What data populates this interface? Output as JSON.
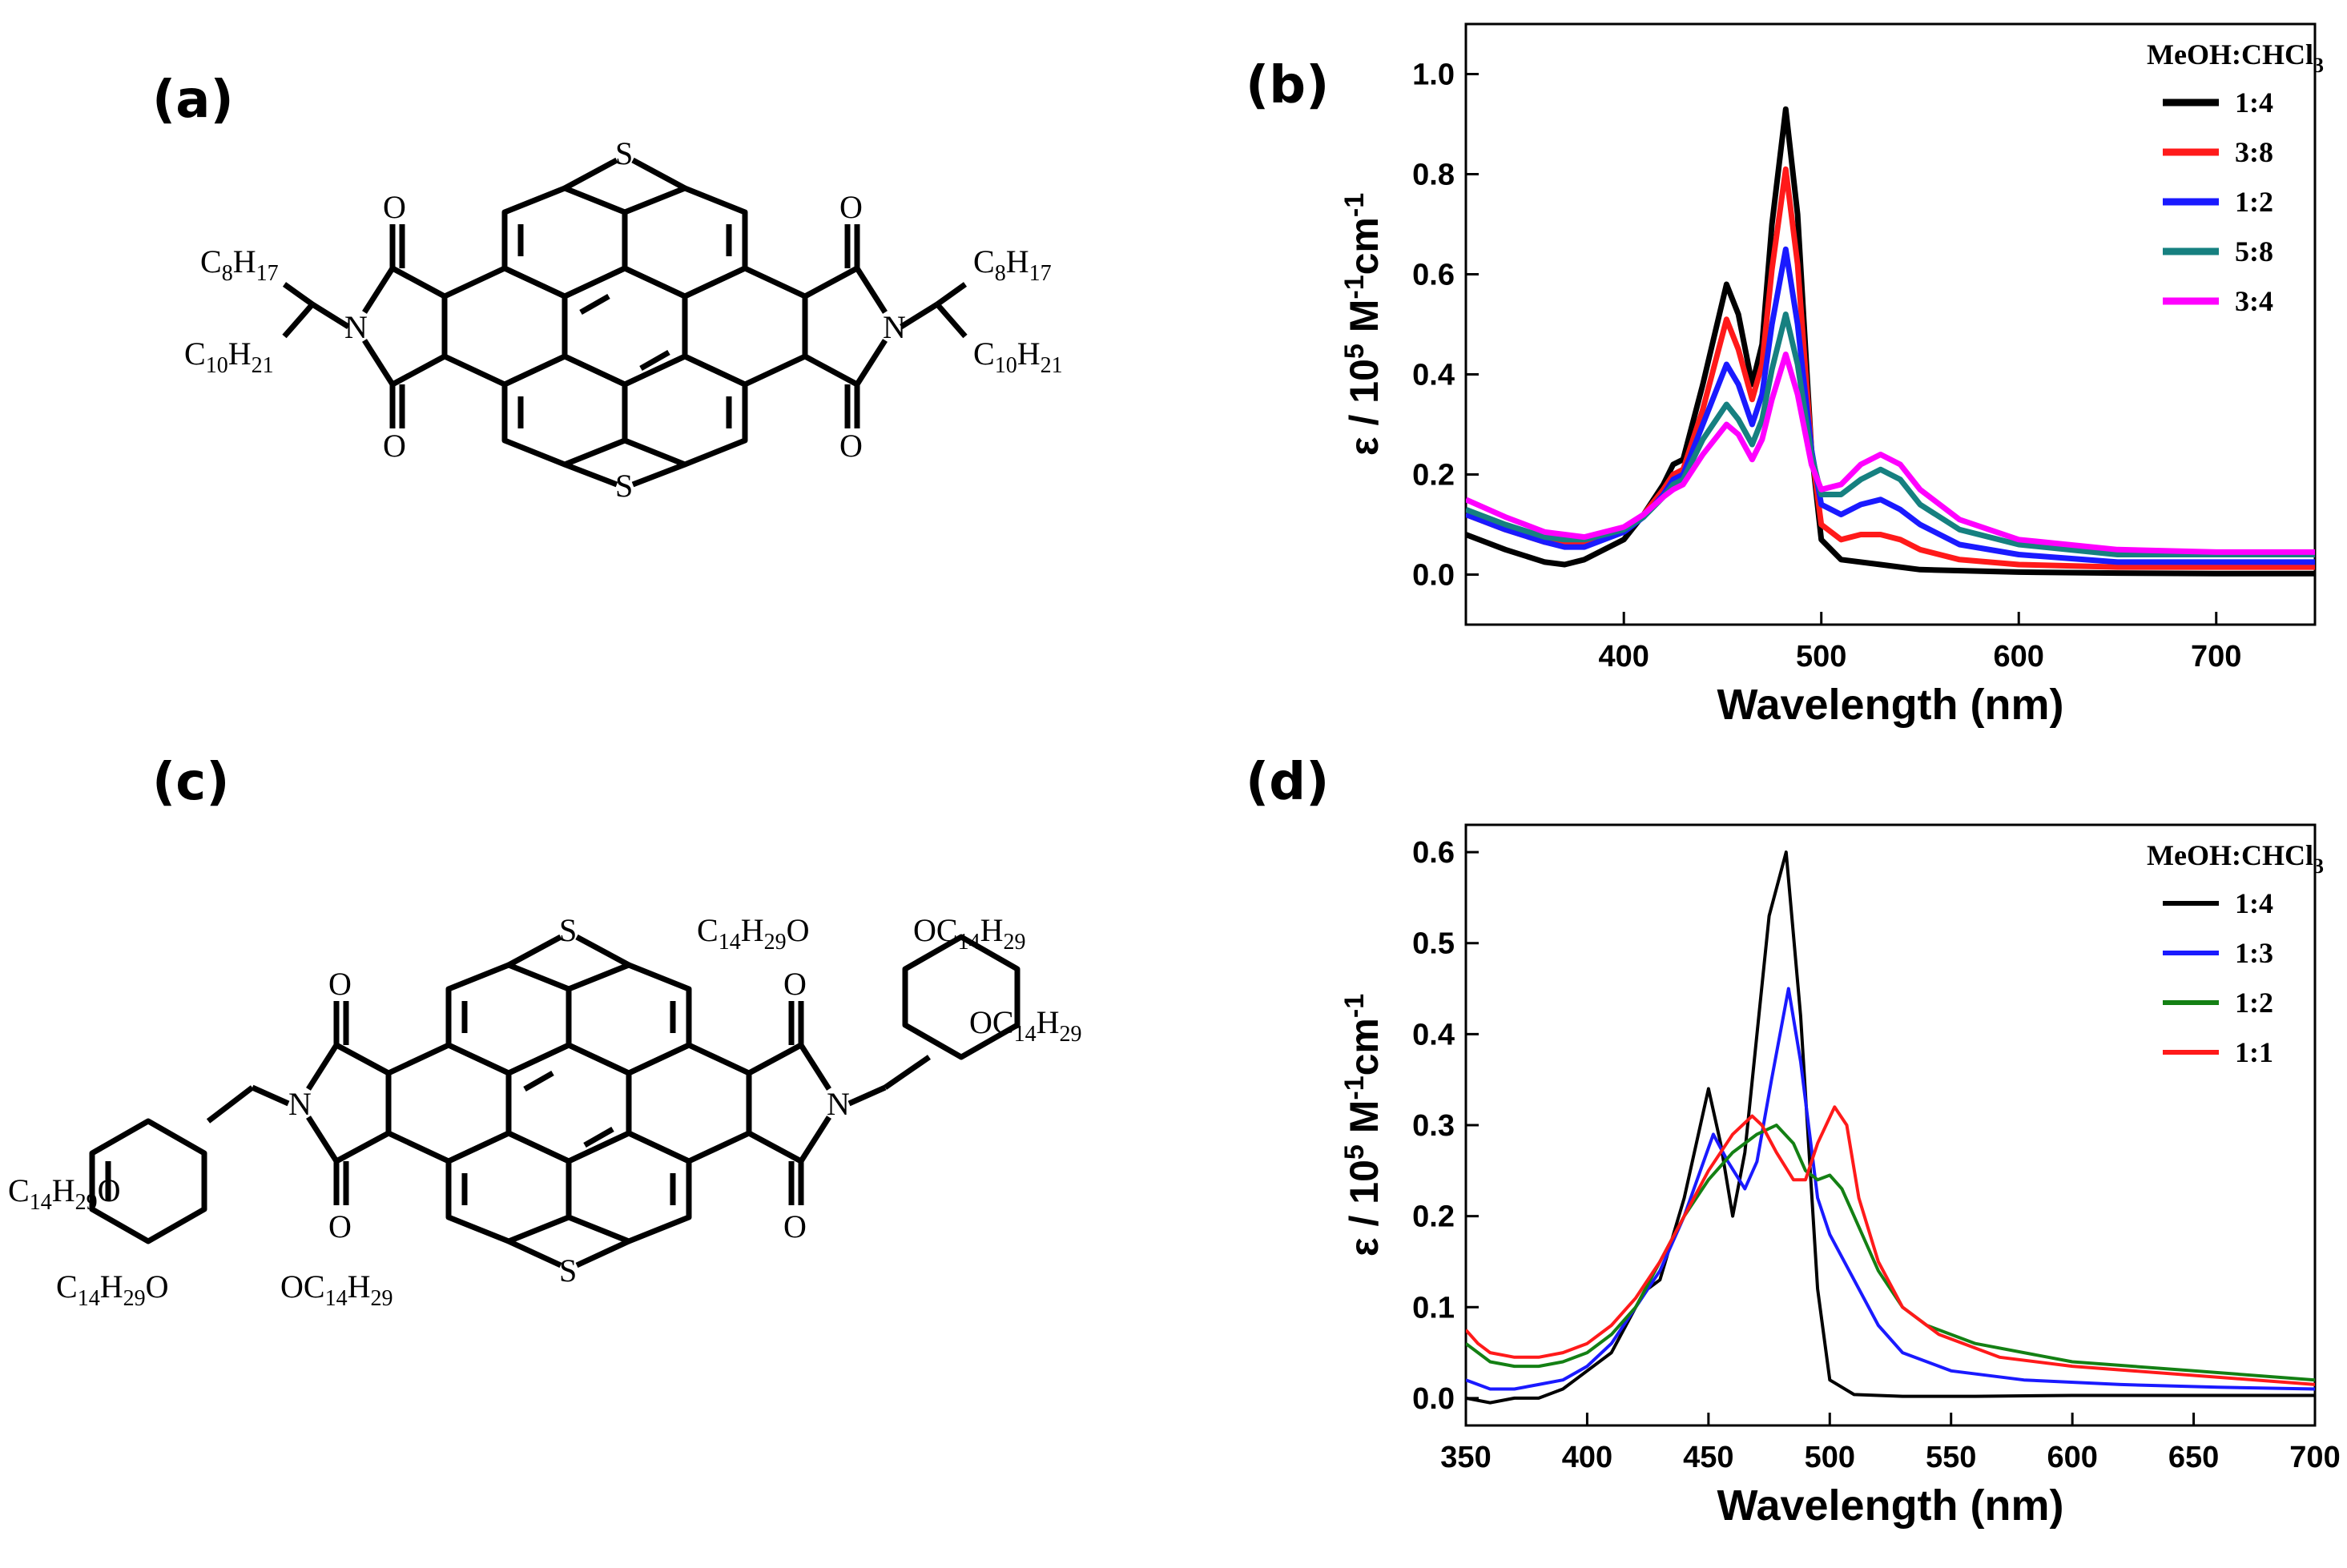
{
  "panels": {
    "a": "(a)",
    "b": "(b)",
    "c": "(c)",
    "d": "(d)"
  },
  "molecules": {
    "a": {
      "atoms": {
        "S": "S",
        "O": "O",
        "N": "N"
      },
      "left_chain_top": {
        "main": "C",
        "sub1": "8",
        "mid": "H",
        "sub2": "17"
      },
      "left_chain_bottom": {
        "main": "C",
        "sub1": "10",
        "mid": "H",
        "sub2": "21"
      },
      "right_chain_top": {
        "main": "C",
        "sub1": "8",
        "mid": "H",
        "sub2": "17"
      },
      "right_chain_bottom": {
        "main": "C",
        "sub1": "10",
        "mid": "H",
        "sub2": "21"
      }
    },
    "c": {
      "atoms": {
        "S": "S",
        "O": "O",
        "N": "N"
      },
      "sub_main": "C",
      "sub_num": "14",
      "sub_h": "H",
      "sub_hnum": "29",
      "oxy": "O"
    }
  },
  "chart_data": [
    {
      "id": "b",
      "type": "line",
      "title": "",
      "xlabel": "Wavelength (nm)",
      "ylabel": {
        "pre": "ε / 10",
        "sup1": "5",
        "mid": " M",
        "sup2": "-1",
        "mid2": "cm",
        "sup3": "-1"
      },
      "xlim": [
        320,
        750
      ],
      "ylim": [
        -0.1,
        1.1
      ],
      "xticks": [
        400,
        500,
        600,
        700
      ],
      "yticks": [
        0.0,
        0.2,
        0.4,
        0.6,
        0.8,
        1.0
      ],
      "ytick_labels": [
        "0.0",
        "0.2",
        "0.4",
        "0.6",
        "0.8",
        "1.0"
      ],
      "legend_title": {
        "pre": "MeOH:CHCl",
        "sub": "3"
      },
      "legend_position": "top-right",
      "series": [
        {
          "name": "1:4",
          "color": "#000000",
          "x": [
            320,
            340,
            360,
            370,
            380,
            400,
            410,
            420,
            425,
            430,
            440,
            452,
            458,
            465,
            470,
            475,
            482,
            488,
            495,
            500,
            510,
            530,
            550,
            600,
            650,
            700,
            750
          ],
          "y": [
            0.08,
            0.05,
            0.025,
            0.02,
            0.03,
            0.07,
            0.12,
            0.18,
            0.22,
            0.23,
            0.38,
            0.58,
            0.52,
            0.38,
            0.46,
            0.7,
            0.93,
            0.72,
            0.25,
            0.07,
            0.03,
            0.02,
            0.01,
            0.005,
            0.003,
            0.002,
            0.002
          ]
        },
        {
          "name": "3:8",
          "color": "#ff1a1a",
          "x": [
            320,
            340,
            360,
            370,
            380,
            400,
            410,
            420,
            425,
            430,
            440,
            452,
            458,
            465,
            470,
            475,
            482,
            488,
            495,
            500,
            510,
            520,
            530,
            540,
            550,
            570,
            600,
            650,
            700,
            750
          ],
          "y": [
            0.12,
            0.09,
            0.065,
            0.06,
            0.06,
            0.09,
            0.12,
            0.17,
            0.2,
            0.21,
            0.33,
            0.51,
            0.45,
            0.35,
            0.42,
            0.61,
            0.81,
            0.62,
            0.25,
            0.1,
            0.07,
            0.08,
            0.08,
            0.07,
            0.05,
            0.03,
            0.02,
            0.015,
            0.015,
            0.015
          ]
        },
        {
          "name": "1:2",
          "color": "#1a1aff",
          "x": [
            320,
            340,
            360,
            370,
            380,
            400,
            410,
            420,
            425,
            430,
            440,
            452,
            458,
            465,
            470,
            475,
            482,
            488,
            495,
            500,
            510,
            520,
            530,
            540,
            550,
            570,
            600,
            650,
            700,
            750
          ],
          "y": [
            0.12,
            0.09,
            0.065,
            0.055,
            0.055,
            0.085,
            0.115,
            0.16,
            0.19,
            0.2,
            0.3,
            0.42,
            0.38,
            0.3,
            0.36,
            0.5,
            0.65,
            0.5,
            0.25,
            0.14,
            0.12,
            0.14,
            0.15,
            0.13,
            0.1,
            0.06,
            0.04,
            0.025,
            0.025,
            0.025
          ]
        },
        {
          "name": "5:8",
          "color": "#168080",
          "x": [
            320,
            340,
            360,
            370,
            380,
            400,
            410,
            420,
            425,
            430,
            440,
            452,
            458,
            465,
            470,
            475,
            482,
            488,
            495,
            500,
            510,
            520,
            530,
            540,
            550,
            570,
            600,
            650,
            700,
            750
          ],
          "y": [
            0.13,
            0.1,
            0.075,
            0.07,
            0.07,
            0.09,
            0.115,
            0.155,
            0.18,
            0.19,
            0.27,
            0.34,
            0.31,
            0.26,
            0.31,
            0.41,
            0.52,
            0.42,
            0.24,
            0.16,
            0.16,
            0.19,
            0.21,
            0.19,
            0.14,
            0.09,
            0.06,
            0.04,
            0.04,
            0.04
          ]
        },
        {
          "name": "3:4",
          "color": "#ff00ff",
          "x": [
            320,
            340,
            360,
            370,
            380,
            400,
            410,
            420,
            425,
            430,
            440,
            452,
            458,
            465,
            470,
            475,
            482,
            488,
            495,
            500,
            510,
            520,
            530,
            540,
            550,
            570,
            600,
            650,
            700,
            750
          ],
          "y": [
            0.15,
            0.115,
            0.085,
            0.08,
            0.075,
            0.095,
            0.12,
            0.155,
            0.17,
            0.18,
            0.24,
            0.3,
            0.28,
            0.23,
            0.27,
            0.35,
            0.44,
            0.36,
            0.22,
            0.17,
            0.18,
            0.22,
            0.24,
            0.22,
            0.17,
            0.11,
            0.07,
            0.05,
            0.045,
            0.045
          ]
        }
      ]
    },
    {
      "id": "d",
      "type": "line",
      "title": "",
      "xlabel": "Wavelength (nm)",
      "ylabel": {
        "pre": "ε / 10",
        "sup1": "5",
        "mid": " M",
        "sup2": "-1",
        "mid2": "cm",
        "sup3": "-1"
      },
      "xlim": [
        350,
        700
      ],
      "ylim": [
        -0.03,
        0.63
      ],
      "xticks": [
        350,
        400,
        450,
        500,
        550,
        600,
        650,
        700
      ],
      "yticks": [
        0.0,
        0.1,
        0.2,
        0.3,
        0.4,
        0.5,
        0.6
      ],
      "ytick_labels": [
        "0.0",
        "0.1",
        "0.2",
        "0.3",
        "0.4",
        "0.5",
        "0.6"
      ],
      "legend_title": {
        "pre": "MeOH:CHCl",
        "sub": "3"
      },
      "legend_position": "top-right",
      "series": [
        {
          "name": "1:4",
          "color": "#000000",
          "x": [
            350,
            360,
            370,
            380,
            390,
            400,
            410,
            420,
            425,
            430,
            440,
            450,
            455,
            460,
            465,
            470,
            475,
            482,
            488,
            495,
            500,
            510,
            530,
            560,
            600,
            650,
            700
          ],
          "y": [
            0.0,
            -0.005,
            0.0,
            0.0,
            0.01,
            0.03,
            0.05,
            0.1,
            0.12,
            0.13,
            0.22,
            0.34,
            0.28,
            0.2,
            0.27,
            0.4,
            0.53,
            0.6,
            0.42,
            0.12,
            0.02,
            0.004,
            0.002,
            0.002,
            0.003,
            0.003,
            0.003
          ]
        },
        {
          "name": "1:3",
          "color": "#1a1aff",
          "x": [
            350,
            360,
            370,
            380,
            390,
            400,
            410,
            420,
            430,
            440,
            452,
            458,
            465,
            470,
            476,
            483,
            488,
            495,
            500,
            510,
            520,
            530,
            550,
            580,
            620,
            660,
            700
          ],
          "y": [
            0.02,
            0.01,
            0.01,
            0.015,
            0.02,
            0.035,
            0.06,
            0.1,
            0.14,
            0.2,
            0.29,
            0.26,
            0.23,
            0.26,
            0.35,
            0.45,
            0.37,
            0.22,
            0.18,
            0.13,
            0.08,
            0.05,
            0.03,
            0.02,
            0.015,
            0.012,
            0.01
          ]
        },
        {
          "name": "1:2",
          "color": "#148014",
          "x": [
            350,
            360,
            370,
            380,
            390,
            400,
            410,
            420,
            430,
            440,
            450,
            460,
            470,
            478,
            485,
            490,
            495,
            500,
            505,
            510,
            520,
            530,
            540,
            560,
            600,
            650,
            700
          ],
          "y": [
            0.06,
            0.04,
            0.035,
            0.035,
            0.04,
            0.05,
            0.07,
            0.1,
            0.15,
            0.2,
            0.24,
            0.27,
            0.29,
            0.3,
            0.28,
            0.25,
            0.24,
            0.245,
            0.23,
            0.2,
            0.14,
            0.1,
            0.08,
            0.06,
            0.04,
            0.03,
            0.02
          ]
        },
        {
          "name": "1:1",
          "color": "#ff1a1a",
          "x": [
            350,
            355,
            360,
            370,
            380,
            390,
            400,
            410,
            420,
            430,
            440,
            450,
            460,
            468,
            472,
            478,
            485,
            490,
            495,
            502,
            507,
            512,
            520,
            530,
            545,
            570,
            600,
            650,
            700
          ],
          "y": [
            0.075,
            0.06,
            0.05,
            0.045,
            0.045,
            0.05,
            0.06,
            0.08,
            0.11,
            0.15,
            0.2,
            0.25,
            0.29,
            0.31,
            0.3,
            0.27,
            0.24,
            0.24,
            0.28,
            0.32,
            0.3,
            0.22,
            0.15,
            0.1,
            0.07,
            0.045,
            0.035,
            0.025,
            0.015
          ]
        }
      ]
    }
  ]
}
